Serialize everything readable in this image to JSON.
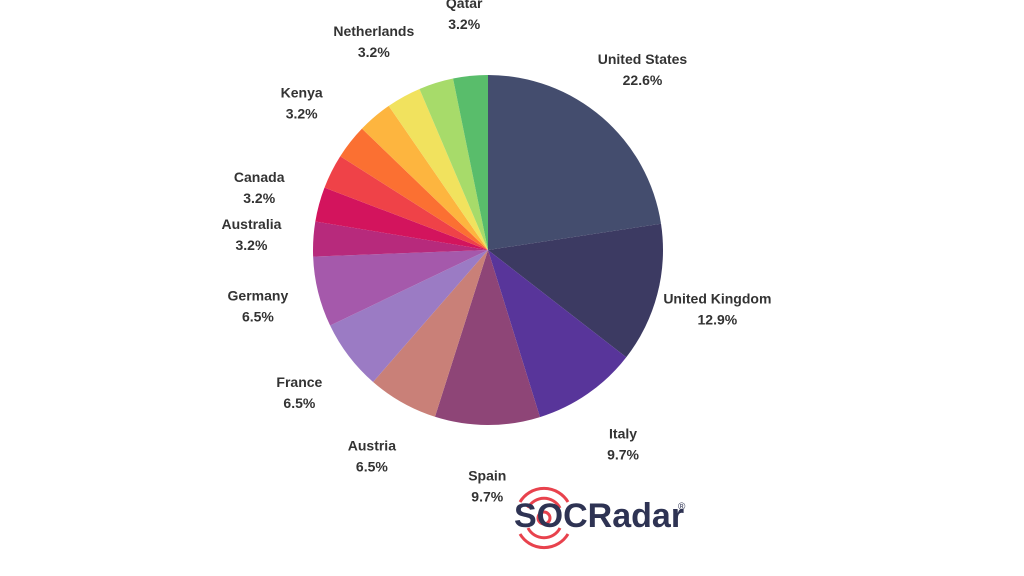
{
  "chart_data": {
    "type": "pie",
    "categories": [
      "United States",
      "United Kingdom",
      "Italy",
      "Spain",
      "Austria",
      "France",
      "Germany",
      "Australia",
      "Canada",
      null,
      "Kenya",
      null,
      "Netherlands",
      null,
      "Qatar"
    ],
    "values": [
      22.6,
      12.9,
      9.7,
      9.7,
      6.5,
      6.5,
      6.5,
      3.2,
      3.2,
      3.2,
      3.2,
      3.2,
      3.2,
      3.2,
      3.2
    ],
    "value_labels": [
      "22.6%",
      "12.9%",
      "9.7%",
      "9.7%",
      "6.5%",
      "6.5%",
      "6.5%",
      "3.2%",
      "3.2%",
      null,
      "3.2%",
      null,
      "3.2%",
      null,
      "3.2%"
    ],
    "colors": [
      "#444d6e",
      "#3c3a62",
      "#58359a",
      "#8e4577",
      "#c98078",
      "#9b7bc4",
      "#a559ab",
      "#b72a7c",
      "#d3145d",
      "#ef4248",
      "#fb7032",
      "#fdb53f",
      "#f1e25e",
      "#a7db6a",
      "#59bd6b"
    ]
  },
  "logo": {
    "text": "SOCRadar",
    "mark": "®"
  }
}
